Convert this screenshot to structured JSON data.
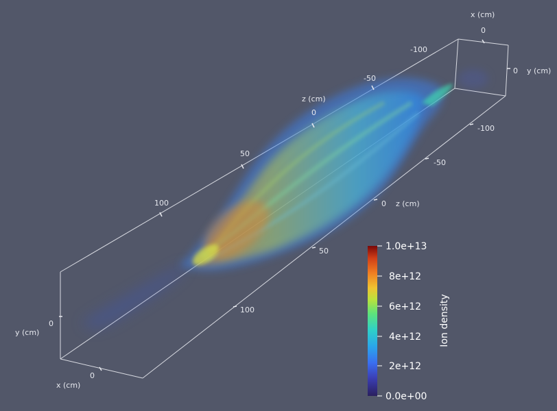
{
  "scene": {
    "background_color": "#525769",
    "box_color": "#e8eaf0",
    "axes": {
      "x_top": {
        "title": "x (cm)",
        "ticks": [
          "0"
        ]
      },
      "y_right": {
        "title": "y (cm)",
        "ticks": [
          "0"
        ]
      },
      "z_top": {
        "title": "z (cm)",
        "ticks": [
          "-100",
          "-50",
          "0",
          "50",
          "100"
        ]
      },
      "y_right_lower": {
        "ticks": [
          "-100",
          "-50"
        ]
      },
      "z_lower": {
        "title": "z (cm)",
        "ticks": [
          "0",
          "50",
          "100"
        ]
      },
      "y_left": {
        "title": "y (cm)",
        "ticks": [
          "0"
        ]
      },
      "x_bottom": {
        "title": "x (cm)",
        "ticks": [
          "0"
        ]
      }
    }
  },
  "colorbar": {
    "title": "Ion density",
    "ticks": [
      "1.0e+13",
      "8e+12",
      "6e+12",
      "4e+12",
      "2e+12",
      "0.0e+00"
    ],
    "range": [
      0,
      10000000000000.0
    ],
    "colormap": [
      "#3b2f8c",
      "#3c62e6",
      "#2fa9e6",
      "#3fd6a6",
      "#a8e64a",
      "#f2c232",
      "#ee7a22",
      "#c8361a",
      "#8b0a0a"
    ]
  }
}
